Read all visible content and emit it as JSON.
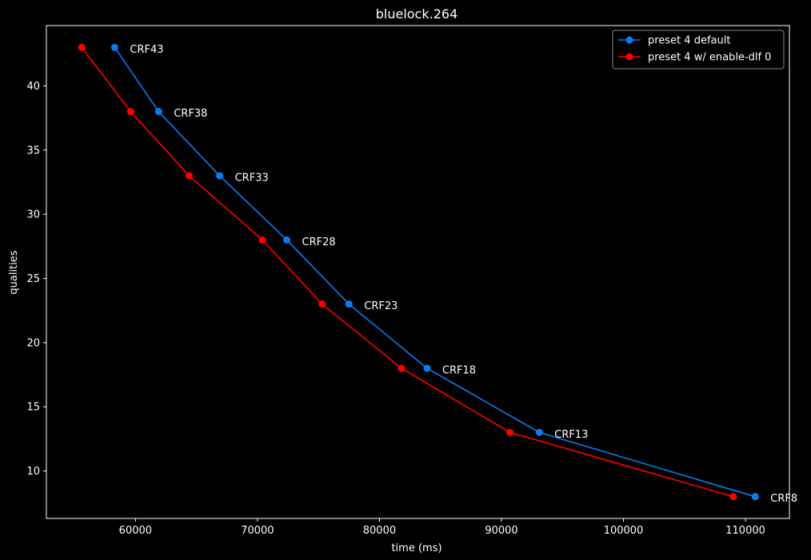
{
  "chart_data": {
    "type": "line",
    "title": "bluelock.264",
    "xlabel": "time (ms)",
    "ylabel": "qualities",
    "xlim": [
      52700,
      113600
    ],
    "ylim": [
      6.3,
      44.7
    ],
    "xticks": [
      60000,
      70000,
      80000,
      90000,
      100000,
      110000
    ],
    "yticks": [
      10,
      15,
      20,
      25,
      30,
      35,
      40
    ],
    "grid": false,
    "legend_position": "top-right",
    "series": [
      {
        "name": "preset 4 default",
        "color": "#0a7cf2",
        "x": [
          58300,
          61900,
          66900,
          72400,
          77500,
          83900,
          93100,
          110800
        ],
        "y": [
          43,
          38,
          33,
          28,
          23,
          18,
          13,
          8
        ]
      },
      {
        "name": "preset 4 w/ enable-dlf 0",
        "color": "#ff0000",
        "x": [
          55600,
          59600,
          64400,
          70400,
          75300,
          81800,
          90700,
          109000
        ],
        "y": [
          43,
          38,
          33,
          28,
          23,
          18,
          13,
          8
        ]
      }
    ],
    "annotations": [
      {
        "text": "CRF43",
        "x": 58300,
        "y": 43
      },
      {
        "text": "CRF38",
        "x": 61900,
        "y": 38
      },
      {
        "text": "CRF33",
        "x": 66900,
        "y": 33
      },
      {
        "text": "CRF28",
        "x": 72400,
        "y": 28
      },
      {
        "text": "CRF23",
        "x": 77500,
        "y": 23
      },
      {
        "text": "CRF18",
        "x": 83900,
        "y": 18
      },
      {
        "text": "CRF13",
        "x": 93100,
        "y": 13
      },
      {
        "text": "CRF8",
        "x": 110800,
        "y": 8
      }
    ]
  }
}
